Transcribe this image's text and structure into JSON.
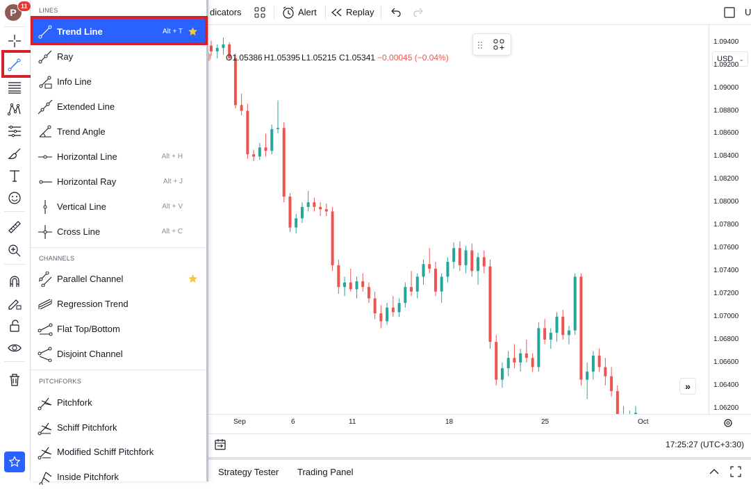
{
  "topbar": {
    "indicators_label": "dicators",
    "alert_label": "Alert",
    "replay_label": "Replay",
    "user_initial": "U"
  },
  "avatar": {
    "letter": "P",
    "badge_count": "11"
  },
  "menu": {
    "sections": [
      {
        "title": "LINES"
      },
      {
        "title": "CHANNELS"
      },
      {
        "title": "PITCHFORKS"
      }
    ],
    "lines": [
      {
        "label": "Trend Line",
        "shortcut": "Alt + T",
        "icon": "trend-line-icon",
        "favorite": true,
        "selected": true
      },
      {
        "label": "Ray",
        "shortcut": "",
        "icon": "ray-icon"
      },
      {
        "label": "Info Line",
        "shortcut": "",
        "icon": "info-line-icon"
      },
      {
        "label": "Extended Line",
        "shortcut": "",
        "icon": "extended-line-icon"
      },
      {
        "label": "Trend Angle",
        "shortcut": "",
        "icon": "trend-angle-icon"
      },
      {
        "label": "Horizontal Line",
        "shortcut": "Alt + H",
        "icon": "horizontal-line-icon"
      },
      {
        "label": "Horizontal Ray",
        "shortcut": "Alt + J",
        "icon": "horizontal-ray-icon"
      },
      {
        "label": "Vertical Line",
        "shortcut": "Alt + V",
        "icon": "vertical-line-icon"
      },
      {
        "label": "Cross Line",
        "shortcut": "Alt + C",
        "icon": "cross-line-icon"
      }
    ],
    "channels": [
      {
        "label": "Parallel Channel",
        "icon": "parallel-channel-icon",
        "favorite": true
      },
      {
        "label": "Regression Trend",
        "icon": "regression-trend-icon"
      },
      {
        "label": "Flat Top/Bottom",
        "icon": "flat-top-bottom-icon"
      },
      {
        "label": "Disjoint Channel",
        "icon": "disjoint-channel-icon"
      }
    ],
    "pitchforks": [
      {
        "label": "Pitchfork",
        "icon": "pitchfork-icon"
      },
      {
        "label": "Schiff Pitchfork",
        "icon": "schiff-pitchfork-icon"
      },
      {
        "label": "Modified Schiff Pitchfork",
        "icon": "modified-schiff-pitchfork-icon"
      },
      {
        "label": "Inside Pitchfork",
        "icon": "inside-pitchfork-icon"
      }
    ]
  },
  "legend": {
    "o": "O1.05386",
    "h": "H1.05395",
    "l": "L1.05215",
    "c": "C1.05341",
    "change": "−0.00045 (−0.04%)"
  },
  "price_axis": {
    "currency": "USD",
    "labels": [
      "1.09400",
      "1.09200",
      "1.09000",
      "1.08800",
      "1.08600",
      "1.08400",
      "1.08200",
      "1.08000",
      "1.07800",
      "1.07600",
      "1.07400",
      "1.07200",
      "1.07000",
      "1.06800",
      "1.06600",
      "1.06400",
      "1.06200"
    ]
  },
  "time_axis": {
    "labels": [
      "Sep",
      "6",
      "11",
      "18",
      "25",
      "Oct"
    ]
  },
  "status": {
    "clock": "17:25:27 (UTC+3:30)"
  },
  "footer": {
    "tabs": [
      "Strategy Tester",
      "Trading Panel"
    ]
  },
  "colors": {
    "up": "#26a69a",
    "down": "#ef5350",
    "accent": "#2962ff",
    "highlight": "#d6202a",
    "star": "#f7c544"
  },
  "chart_data": {
    "type": "candlestick",
    "ylim": [
      1.0615,
      1.0955
    ],
    "candles": [
      [
        1.0937,
        1.0941,
        1.0928,
        1.0932
      ],
      [
        1.0932,
        1.0938,
        1.0926,
        1.0935
      ],
      [
        1.0935,
        1.0944,
        1.0929,
        1.0938
      ],
      [
        1.0938,
        1.094,
        1.0924,
        1.0926
      ],
      [
        1.0926,
        1.093,
        1.0882,
        1.0885
      ],
      [
        1.0885,
        1.0895,
        1.0876,
        1.088
      ],
      [
        1.088,
        1.0886,
        1.0838,
        1.0842
      ],
      [
        1.0842,
        1.0846,
        1.0836,
        1.084
      ],
      [
        1.084,
        1.0852,
        1.0837,
        1.0848
      ],
      [
        1.0848,
        1.086,
        1.084,
        1.0845
      ],
      [
        1.0845,
        1.0868,
        1.0842,
        1.0864
      ],
      [
        1.0864,
        1.0889,
        1.086,
        1.0865
      ],
      [
        1.0865,
        1.087,
        1.08,
        1.0805
      ],
      [
        1.0805,
        1.0808,
        1.0774,
        1.0778
      ],
      [
        1.0778,
        1.079,
        1.0773,
        1.0786
      ],
      [
        1.0786,
        1.08,
        1.0782,
        1.0796
      ],
      [
        1.0796,
        1.081,
        1.0792,
        1.08
      ],
      [
        1.08,
        1.0804,
        1.0792,
        1.0796
      ],
      [
        1.0796,
        1.08,
        1.0788,
        1.0794
      ],
      [
        1.0794,
        1.0799,
        1.0788,
        1.0792
      ],
      [
        1.0792,
        1.0796,
        1.074,
        1.0745
      ],
      [
        1.0745,
        1.075,
        1.072,
        1.0726
      ],
      [
        1.0726,
        1.0735,
        1.0718,
        1.073
      ],
      [
        1.073,
        1.0742,
        1.0722,
        1.0724
      ],
      [
        1.0724,
        1.0735,
        1.0716,
        1.0731
      ],
      [
        1.0731,
        1.0738,
        1.0722,
        1.0726
      ],
      [
        1.0726,
        1.073,
        1.0712,
        1.0716
      ],
      [
        1.0716,
        1.0722,
        1.0698,
        1.0703
      ],
      [
        1.0703,
        1.071,
        1.069,
        1.0696
      ],
      [
        1.0696,
        1.0712,
        1.0693,
        1.0708
      ],
      [
        1.0708,
        1.0718,
        1.07,
        1.0704
      ],
      [
        1.0704,
        1.0716,
        1.07,
        1.0712
      ],
      [
        1.0712,
        1.073,
        1.0708,
        1.0726
      ],
      [
        1.0726,
        1.074,
        1.0718,
        1.0722
      ],
      [
        1.0722,
        1.0738,
        1.0716,
        1.0735
      ],
      [
        1.0735,
        1.075,
        1.0728,
        1.0746
      ],
      [
        1.0746,
        1.076,
        1.0738,
        1.0742
      ],
      [
        1.0742,
        1.0748,
        1.0718,
        1.0722
      ],
      [
        1.0722,
        1.0738,
        1.0712,
        1.0735
      ],
      [
        1.0735,
        1.0752,
        1.073,
        1.0748
      ],
      [
        1.0748,
        1.0765,
        1.0742,
        1.076
      ],
      [
        1.076,
        1.0766,
        1.074,
        1.0745
      ],
      [
        1.0745,
        1.0762,
        1.0738,
        1.0758
      ],
      [
        1.0758,
        1.0764,
        1.0735,
        1.074
      ],
      [
        1.074,
        1.0756,
        1.0728,
        1.0752
      ],
      [
        1.0752,
        1.0758,
        1.0738,
        1.0744
      ],
      [
        1.0744,
        1.075,
        1.0672,
        1.0678
      ],
      [
        1.0678,
        1.0684,
        1.064,
        1.0645
      ],
      [
        1.0645,
        1.066,
        1.0638,
        1.0655
      ],
      [
        1.0655,
        1.067,
        1.0648,
        1.0664
      ],
      [
        1.0664,
        1.0676,
        1.0655,
        1.066
      ],
      [
        1.066,
        1.0672,
        1.0652,
        1.0668
      ],
      [
        1.0668,
        1.068,
        1.066,
        1.0664
      ],
      [
        1.0664,
        1.0668,
        1.0652,
        1.0656
      ],
      [
        1.0656,
        1.0695,
        1.0652,
        1.069
      ],
      [
        1.069,
        1.0698,
        1.0676,
        1.068
      ],
      [
        1.068,
        1.069,
        1.0672,
        1.0686
      ],
      [
        1.0686,
        1.0704,
        1.0678,
        1.07
      ],
      [
        1.07,
        1.0706,
        1.068,
        1.0684
      ],
      [
        1.0684,
        1.0692,
        1.0676,
        1.0688
      ],
      [
        1.0688,
        1.0738,
        1.0684,
        1.0735
      ],
      [
        1.0735,
        1.0738,
        1.064,
        1.0645
      ],
      [
        1.0645,
        1.066,
        1.0628,
        1.0652
      ],
      [
        1.0652,
        1.067,
        1.0645,
        1.0666
      ],
      [
        1.0666,
        1.0672,
        1.0652,
        1.0656
      ],
      [
        1.0656,
        1.0664,
        1.064,
        1.0648
      ],
      [
        1.0648,
        1.0656,
        1.063,
        1.0635
      ],
      [
        1.0635,
        1.064,
        1.0612,
        1.0615
      ],
      [
        1.0615,
        1.0622,
        1.0605,
        1.061
      ],
      [
        1.061,
        1.0618,
        1.0605,
        1.0614
      ],
      [
        1.0614,
        1.0622,
        1.0608,
        1.0616
      ]
    ]
  }
}
